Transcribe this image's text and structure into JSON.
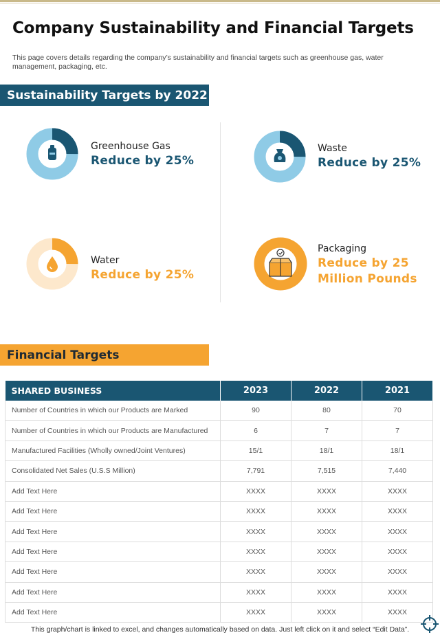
{
  "page": {
    "title": "Company Sustainability and Financial Targets",
    "intro": "This page covers details regarding the company’s sustainability and financial targets such as greenhouse gas, water management, packaging, etc."
  },
  "sustainability": {
    "heading": "Sustainability Targets by 2022",
    "targets": [
      {
        "label": "Greenhouse Gas",
        "value": "Reduce by 25%",
        "icon": "gas-cylinder-icon",
        "share": 0.25,
        "color": "#1a5672",
        "track": "#8fcbe6"
      },
      {
        "label": "Waste",
        "value": "Reduce by 25%",
        "icon": "waste-bag-icon",
        "share": 0.25,
        "color": "#1a5672",
        "track": "#8fcbe6"
      },
      {
        "label": "Water",
        "value": "Reduce by 25%",
        "icon": "water-drop-icon",
        "share": 0.25,
        "color": "#f5a431",
        "track": "#fde8cc"
      },
      {
        "label": "Packaging",
        "value_line1": "Reduce by 25",
        "value_line2": "Million Pounds",
        "icon": "package-box-icon",
        "share": 1.0,
        "color": "#f5a431",
        "track": "#fde8cc"
      }
    ]
  },
  "financial": {
    "heading": "Financial Targets",
    "columns": [
      "SHARED BUSINESS",
      "2023",
      "2022",
      "2021"
    ],
    "rows": [
      [
        "Number of Countries in which our Products are Marked",
        "90",
        "80",
        "70"
      ],
      [
        "Number of Countries in which our Products are Manufactured",
        "6",
        "7",
        "7"
      ],
      [
        "Manufactured Facilities (Wholly owned/Joint Ventures)",
        "15/1",
        "18/1",
        "18/1"
      ],
      [
        "Consolidated Net Sales (U.S.S Million)",
        "7,791",
        "7,515",
        "7,440"
      ],
      [
        "Add Text Here",
        "XXXX",
        "XXXX",
        "XXXX"
      ],
      [
        "Add Text Here",
        "XXXX",
        "XXXX",
        "XXXX"
      ],
      [
        "Add Text Here",
        "XXXX",
        "XXXX",
        "XXXX"
      ],
      [
        "Add Text Here",
        "XXXX",
        "XXXX",
        "XXXX"
      ],
      [
        "Add Text Here",
        "XXXX",
        "XXXX",
        "XXXX"
      ],
      [
        "Add Text Here",
        "XXXX",
        "XXXX",
        "XXXX"
      ],
      [
        "Add Text Here",
        "XXXX",
        "XXXX",
        "XXXX"
      ]
    ]
  },
  "footnote": "This graph/chart is linked to excel,  and changes automatically based on data. Just left click on it and select “Edit Data”.",
  "colors": {
    "accent_blue": "#1a5672",
    "accent_orange": "#f5a431"
  }
}
